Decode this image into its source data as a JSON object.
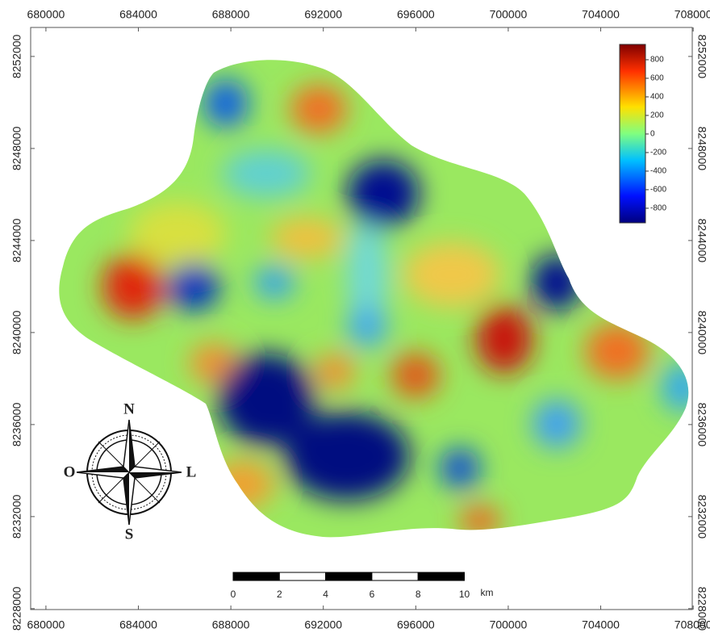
{
  "map": {
    "x_axis": {
      "lim": [
        679340,
        707960
      ],
      "ticks": [
        680000,
        684000,
        688000,
        692000,
        696000,
        700000,
        704000,
        708000
      ]
    },
    "y_axis": {
      "lim": [
        8227960,
        8253260
      ],
      "ticks": [
        8228000,
        8232000,
        8236000,
        8240000,
        8244000,
        8248000,
        8252000
      ]
    },
    "colorbar": {
      "lim": [
        -957,
        965
      ],
      "ticks": [
        800,
        600,
        400,
        200,
        0,
        -200,
        -400,
        -600,
        -800
      ]
    },
    "compass": {
      "north": "N",
      "west": "O",
      "east": "L",
      "south": "S"
    },
    "scale_bar": {
      "ticks": [
        0,
        2,
        4,
        6,
        8,
        10
      ],
      "unit": "km"
    }
  }
}
